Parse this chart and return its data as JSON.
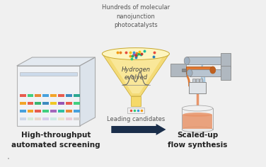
{
  "bg_color": "#f0f0f0",
  "title_top": "Hundreds of molecular\nnanojunction\nphotocatalysts",
  "label_left": "High-throughput\nautomated screening",
  "label_right": "Scaled-up\nflow synthesis",
  "label_middle_bottom": "Leading candidates",
  "label_funnel_inside": "Hydrogen\nevolved",
  "text_color": "#555555",
  "arrow_color": "#1a2e4a",
  "funnel_yellow": "#f5d96a",
  "funnel_light": "#fdf0b0",
  "box_edge": "#aaaaaa",
  "box_face": "#eeeeee",
  "box_top": "#dddddd",
  "box_right": "#cccccc",
  "bar_colors": [
    "#e74c3c",
    "#2ecc71",
    "#3498db",
    "#f39c12",
    "#9b59b6",
    "#1abc9c",
    "#e67e22",
    "#c0392b",
    "#27ae60",
    "#2980b9",
    "#f1c40f",
    "#8e44ad",
    "#16a085",
    "#d35400",
    "#7f8c8d",
    "#2c3e50"
  ],
  "dot_colors": [
    "#e74c3c",
    "#2ecc71",
    "#3498db",
    "#f39c12",
    "#9b59b6",
    "#1abc9c",
    "#e67e22",
    "#c0392b",
    "#27ae60",
    "#2980b9",
    "#f1c40f"
  ],
  "font_size_label": 7.5,
  "font_size_top": 6,
  "font_size_funnel": 6
}
